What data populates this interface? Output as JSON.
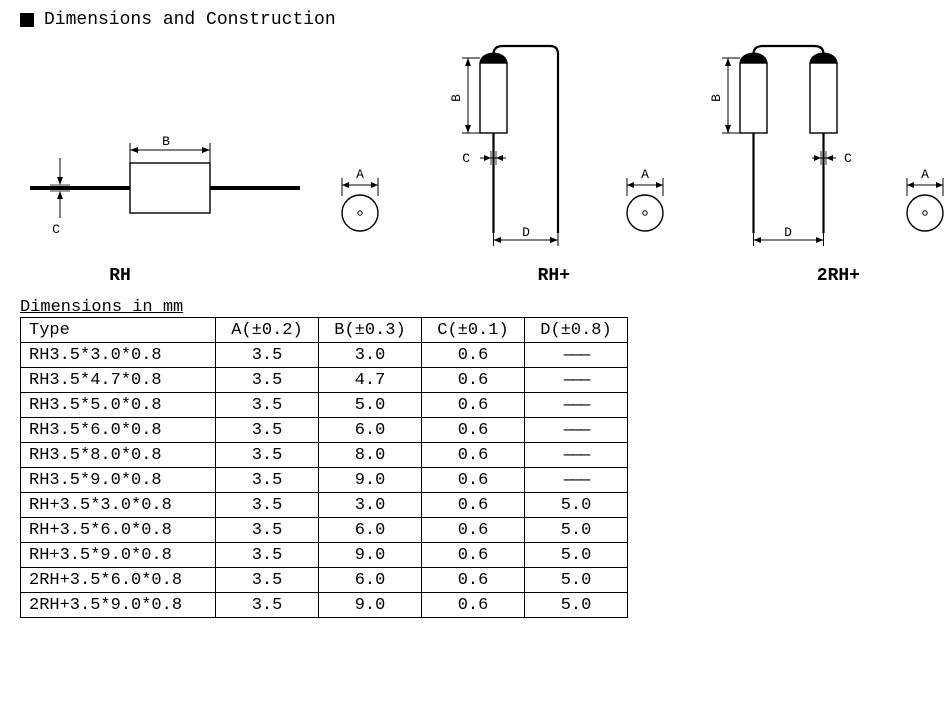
{
  "section_title": "Dimensions and Construction",
  "figures": {
    "rh": {
      "label": "RH"
    },
    "rhp": {
      "label": "RH+"
    },
    "rhp2": {
      "label": "2RH+"
    }
  },
  "dim_labels": {
    "A": "A",
    "B": "B",
    "C": "C",
    "D": "D"
  },
  "table": {
    "caption": "Dimensions in mm",
    "columns": {
      "type": "Type",
      "a": "A(±0.2)",
      "b": "B(±0.3)",
      "c": "C(±0.1)",
      "d": "D(±0.8)"
    },
    "dash": "———",
    "rows": [
      {
        "type": "RH3.5*3.0*0.8",
        "a": "3.5",
        "b": "3.0",
        "c": "0.6",
        "d": null
      },
      {
        "type": "RH3.5*4.7*0.8",
        "a": "3.5",
        "b": "4.7",
        "c": "0.6",
        "d": null
      },
      {
        "type": "RH3.5*5.0*0.8",
        "a": "3.5",
        "b": "5.0",
        "c": "0.6",
        "d": null
      },
      {
        "type": "RH3.5*6.0*0.8",
        "a": "3.5",
        "b": "6.0",
        "c": "0.6",
        "d": null
      },
      {
        "type": "RH3.5*8.0*0.8",
        "a": "3.5",
        "b": "8.0",
        "c": "0.6",
        "d": null
      },
      {
        "type": "RH3.5*9.0*0.8",
        "a": "3.5",
        "b": "9.0",
        "c": "0.6",
        "d": null
      },
      {
        "type": "RH+3.5*3.0*0.8",
        "a": "3.5",
        "b": "3.0",
        "c": "0.6",
        "d": "5.0"
      },
      {
        "type": "RH+3.5*6.0*0.8",
        "a": "3.5",
        "b": "6.0",
        "c": "0.6",
        "d": "5.0"
      },
      {
        "type": "RH+3.5*9.0*0.8",
        "a": "3.5",
        "b": "9.0",
        "c": "0.6",
        "d": "5.0"
      },
      {
        "type": "2RH+3.5*6.0*0.8",
        "a": "3.5",
        "b": "6.0",
        "c": "0.6",
        "d": "5.0"
      },
      {
        "type": "2RH+3.5*9.0*0.8",
        "a": "3.5",
        "b": "9.0",
        "c": "0.6",
        "d": "5.0"
      }
    ]
  },
  "style": {
    "stroke": "#000000",
    "thin": 1,
    "med": 1.4,
    "fill_bg": "#ffffff"
  }
}
